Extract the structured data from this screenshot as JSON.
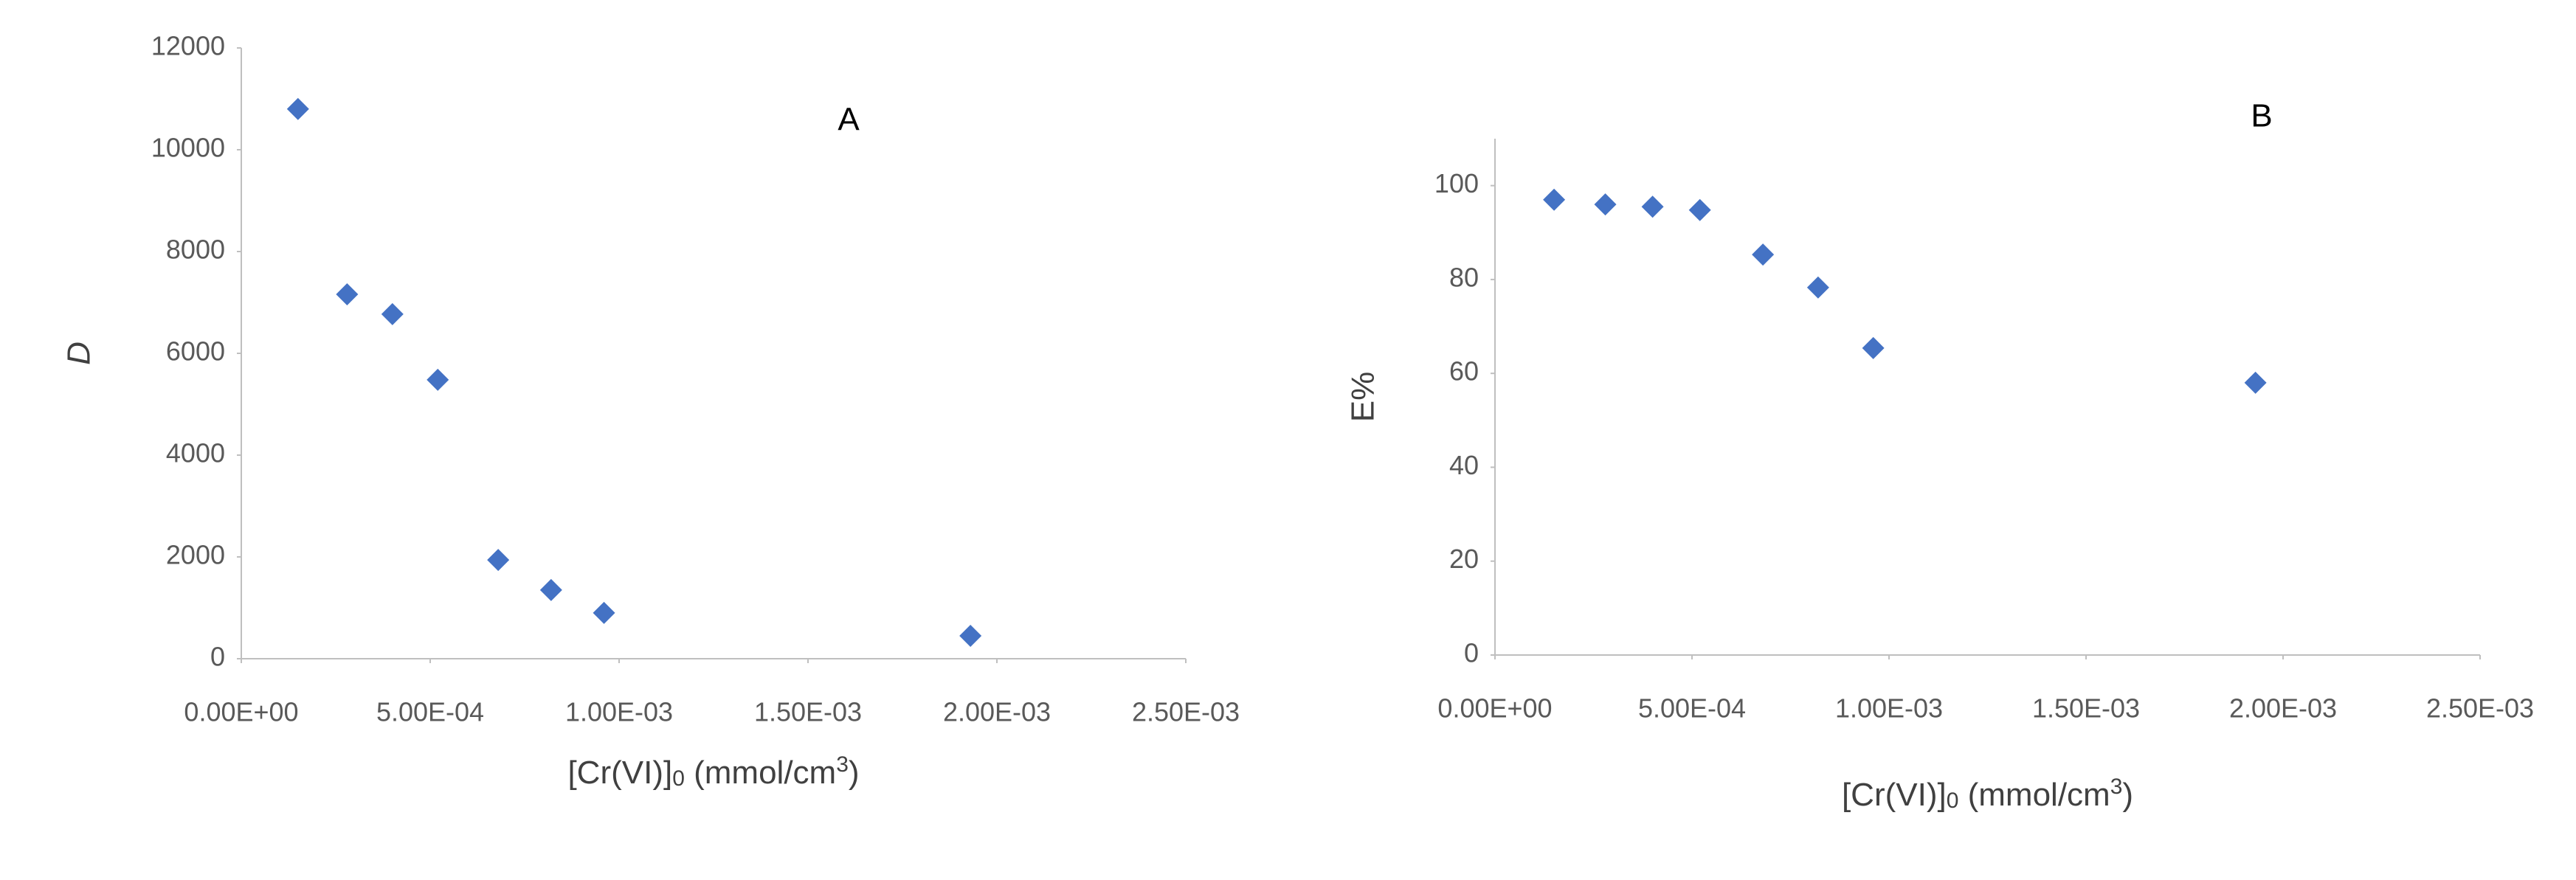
{
  "chart_data": [
    {
      "type": "scatter",
      "annotation": "A",
      "y_label": "D",
      "x_label": [
        "[Cr(VI)]",
        "0",
        " (mmol/cm",
        "3",
        ")"
      ],
      "series": [
        {
          "color": "#4472c4",
          "x": [
            0.00015,
            0.00028,
            0.0004,
            0.00052,
            0.00068,
            0.00082,
            0.00096,
            0.00193
          ],
          "values": [
            10800,
            7160,
            6770,
            5480,
            1940,
            1350,
            900,
            450
          ]
        }
      ],
      "xlim": [
        0,
        0.0025
      ],
      "xticks": [
        {
          "value": 0,
          "label": "0.00E+00"
        },
        {
          "value": 0.0005,
          "label": "5.00E-04"
        },
        {
          "value": 0.001,
          "label": "1.00E-03"
        },
        {
          "value": 0.0015,
          "label": "1.50E-03"
        },
        {
          "value": 0.002,
          "label": "2.00E-03"
        },
        {
          "value": 0.0025,
          "label": "2.50E-03"
        }
      ],
      "ylim": [
        0,
        12000
      ],
      "yticks": [
        0,
        2000,
        4000,
        6000,
        8000,
        10000,
        12000
      ],
      "grid": false
    },
    {
      "type": "scatter",
      "annotation": "B",
      "y_label": "E%",
      "x_label": [
        "[Cr(VI)]",
        "0",
        " (mmol/cm",
        "3",
        ")"
      ],
      "series": [
        {
          "color": "#4472c4",
          "x": [
            0.00015,
            0.00028,
            0.0004,
            0.00052,
            0.00068,
            0.00082,
            0.00096,
            0.00193
          ],
          "values": [
            97,
            96,
            95.5,
            94.8,
            85.3,
            78.3,
            65.4,
            58
          ]
        }
      ],
      "xlim": [
        0,
        0.0025
      ],
      "xticks": [
        {
          "value": 0,
          "label": "0.00E+00"
        },
        {
          "value": 0.0005,
          "label": "5.00E-04"
        },
        {
          "value": 0.001,
          "label": "1.00E-03"
        },
        {
          "value": 0.0015,
          "label": "1.50E-03"
        },
        {
          "value": 0.002,
          "label": "2.00E-03"
        },
        {
          "value": 0.0025,
          "label": "2.50E-03"
        }
      ],
      "ylim": [
        0,
        110
      ],
      "yticks": [
        0,
        20,
        40,
        60,
        80,
        100
      ],
      "grid": false
    }
  ]
}
